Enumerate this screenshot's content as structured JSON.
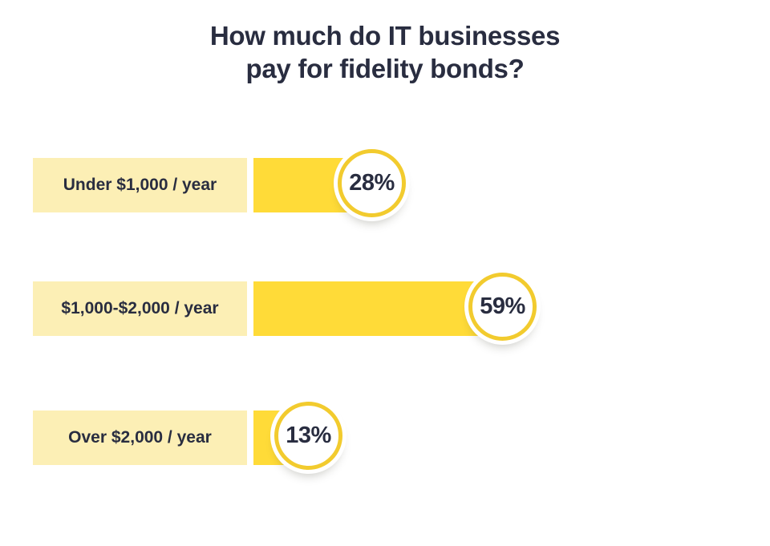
{
  "title": {
    "line1": "How much do IT businesses",
    "line2": "pay for fidelity bonds?"
  },
  "chart_data": {
    "type": "bar",
    "orientation": "horizontal",
    "title": "How much do IT businesses pay for fidelity bonds?",
    "categories": [
      "Under $1,000 / year",
      "$1,000-$2,000 / year",
      "Over $2,000 / year"
    ],
    "values": [
      28,
      59,
      13
    ],
    "value_labels": [
      "28%",
      "59%",
      "13%"
    ],
    "unit": "percent",
    "xlim": [
      0,
      100
    ],
    "grid": false,
    "legend": "none"
  },
  "colors": {
    "background": "#FFFFFF",
    "bar_fill": "#FFDB38",
    "category_bg": "#FCEFB5",
    "bubble_border": "#F2CB2E",
    "bubble_fill": "#FFFFFF",
    "text": "#292D40"
  }
}
